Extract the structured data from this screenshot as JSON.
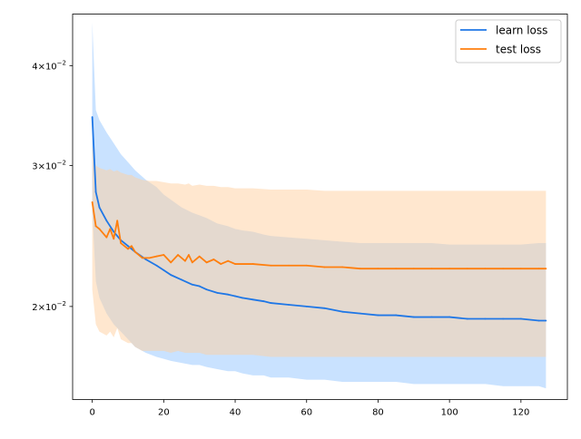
{
  "chart_data": {
    "type": "line",
    "title": "",
    "xlabel": "",
    "ylabel": "",
    "xlim": [
      -5.5,
      133
    ],
    "ylim": [
      0.0153,
      0.0464
    ],
    "yscale": "log",
    "grid": false,
    "legend_position": "top-right",
    "x_ticks": [
      0,
      20,
      40,
      60,
      80,
      100,
      120
    ],
    "x_tick_labels": [
      "0",
      "20",
      "40",
      "60",
      "80",
      "100",
      "120"
    ],
    "y_ticks": [
      0.02,
      0.03,
      0.04
    ],
    "y_tick_labels": [
      {
        "mantissa": "2",
        "base": "10",
        "exp": "−2"
      },
      {
        "mantissa": "3",
        "base": "10",
        "exp": "−2"
      },
      {
        "mantissa": "4",
        "base": "10",
        "exp": "−2"
      }
    ],
    "series": [
      {
        "name": "learn loss",
        "color": "#1f77e6",
        "band_color": "#9ccbff",
        "x": [
          0,
          1,
          2,
          4,
          6,
          8,
          10,
          12,
          15,
          18,
          20,
          22,
          25,
          28,
          30,
          32,
          35,
          38,
          40,
          42,
          45,
          48,
          50,
          55,
          60,
          65,
          70,
          75,
          80,
          85,
          90,
          95,
          100,
          105,
          110,
          115,
          120,
          125,
          127
        ],
        "values": [
          0.0345,
          0.0278,
          0.0266,
          0.0256,
          0.0248,
          0.0242,
          0.0238,
          0.0234,
          0.0229,
          0.0225,
          0.0222,
          0.0219,
          0.0216,
          0.0213,
          0.0212,
          0.021,
          0.0208,
          0.0207,
          0.0206,
          0.0205,
          0.0204,
          0.0203,
          0.0202,
          0.0201,
          0.02,
          0.0199,
          0.0197,
          0.0196,
          0.0195,
          0.0195,
          0.0194,
          0.0194,
          0.0194,
          0.0193,
          0.0193,
          0.0193,
          0.0193,
          0.0192,
          0.0192
        ],
        "upper": [
          0.0453,
          0.0352,
          0.0342,
          0.033,
          0.032,
          0.031,
          0.0303,
          0.0296,
          0.0288,
          0.0282,
          0.0276,
          0.0272,
          0.0266,
          0.0262,
          0.026,
          0.0258,
          0.0254,
          0.0252,
          0.025,
          0.0249,
          0.0248,
          0.0246,
          0.0245,
          0.0244,
          0.0243,
          0.0242,
          0.0241,
          0.024,
          0.024,
          0.024,
          0.024,
          0.024,
          0.0239,
          0.0239,
          0.0239,
          0.0239,
          0.0239,
          0.024,
          0.024
        ],
        "lower": [
          0.0263,
          0.0215,
          0.0205,
          0.0196,
          0.019,
          0.0186,
          0.0182,
          0.0178,
          0.0175,
          0.0173,
          0.0172,
          0.0171,
          0.017,
          0.0169,
          0.0169,
          0.0168,
          0.0167,
          0.0166,
          0.0166,
          0.0165,
          0.0164,
          0.0164,
          0.0163,
          0.0163,
          0.0162,
          0.0162,
          0.0161,
          0.0161,
          0.0161,
          0.0161,
          0.016,
          0.016,
          0.016,
          0.016,
          0.016,
          0.0159,
          0.0159,
          0.0159,
          0.0158
        ]
      },
      {
        "name": "test loss",
        "color": "#ff7f0e",
        "band_color": "#ffcf9f",
        "x": [
          0,
          1,
          2,
          4,
          5,
          6,
          7,
          8,
          10,
          11,
          12,
          14,
          16,
          18,
          20,
          22,
          24,
          26,
          27,
          28,
          30,
          32,
          34,
          36,
          38,
          40,
          45,
          50,
          55,
          60,
          65,
          70,
          75,
          80,
          85,
          90,
          95,
          100,
          105,
          110,
          115,
          120,
          125,
          127
        ],
        "values": [
          0.027,
          0.0252,
          0.025,
          0.0244,
          0.025,
          0.0243,
          0.0256,
          0.024,
          0.0236,
          0.0238,
          0.0234,
          0.023,
          0.023,
          0.0231,
          0.0232,
          0.0227,
          0.0232,
          0.0228,
          0.0232,
          0.0227,
          0.0231,
          0.0227,
          0.0229,
          0.0226,
          0.0228,
          0.0226,
          0.0226,
          0.0225,
          0.0225,
          0.0225,
          0.0224,
          0.0224,
          0.0223,
          0.0223,
          0.0223,
          0.0223,
          0.0223,
          0.0223,
          0.0223,
          0.0223,
          0.0223,
          0.0223,
          0.0223,
          0.0223
        ],
        "upper": [
          0.0318,
          0.03,
          0.0298,
          0.0296,
          0.0297,
          0.0295,
          0.0296,
          0.0294,
          0.0292,
          0.0292,
          0.029,
          0.0288,
          0.0287,
          0.0287,
          0.0286,
          0.0285,
          0.0285,
          0.0284,
          0.0285,
          0.0283,
          0.0284,
          0.0283,
          0.0283,
          0.0282,
          0.0282,
          0.0281,
          0.0281,
          0.028,
          0.028,
          0.028,
          0.0279,
          0.0279,
          0.0279,
          0.0279,
          0.0279,
          0.0279,
          0.0279,
          0.0279,
          0.0279,
          0.0279,
          0.0279,
          0.0279,
          0.0279,
          0.0279
        ],
        "lower": [
          0.021,
          0.019,
          0.0186,
          0.0184,
          0.0186,
          0.0183,
          0.0188,
          0.0182,
          0.018,
          0.018,
          0.0178,
          0.0176,
          0.0176,
          0.0176,
          0.0176,
          0.0175,
          0.0176,
          0.0175,
          0.0175,
          0.0175,
          0.0175,
          0.0174,
          0.0174,
          0.0174,
          0.0174,
          0.0174,
          0.0174,
          0.0173,
          0.0173,
          0.0173,
          0.0173,
          0.0173,
          0.0173,
          0.0173,
          0.0173,
          0.0173,
          0.0173,
          0.0173,
          0.0173,
          0.0173,
          0.0173,
          0.0173,
          0.0173,
          0.0173
        ]
      }
    ]
  }
}
